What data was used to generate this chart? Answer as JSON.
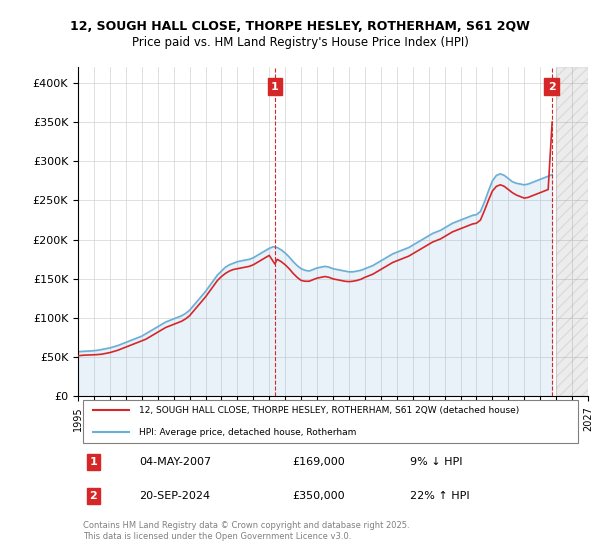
{
  "title1": "12, SOUGH HALL CLOSE, THORPE HESLEY, ROTHERHAM, S61 2QW",
  "title2": "Price paid vs. HM Land Registry's House Price Index (HPI)",
  "ylabel_ticks": [
    "£0",
    "£50K",
    "£100K",
    "£150K",
    "£200K",
    "£250K",
    "£300K",
    "£350K",
    "£400K"
  ],
  "ytick_vals": [
    0,
    50000,
    100000,
    150000,
    200000,
    250000,
    300000,
    350000,
    400000
  ],
  "ylim": [
    0,
    420000
  ],
  "xlim_start": 1995.0,
  "xlim_end": 2027.0,
  "xticks": [
    1995,
    1996,
    1997,
    1998,
    1999,
    2000,
    2001,
    2002,
    2003,
    2004,
    2005,
    2006,
    2007,
    2008,
    2009,
    2010,
    2011,
    2012,
    2013,
    2014,
    2015,
    2016,
    2017,
    2018,
    2019,
    2020,
    2021,
    2022,
    2023,
    2024,
    2025,
    2026,
    2027
  ],
  "hpi_color": "#6baed6",
  "price_color": "#d62728",
  "annotation_box_color": "#d62728",
  "marker1_year": 2007.35,
  "marker1_price": 169000,
  "marker2_year": 2024.72,
  "marker2_price": 350000,
  "legend_line1": "12, SOUGH HALL CLOSE, THORPE HESLEY, ROTHERHAM, S61 2QW (detached house)",
  "legend_line2": "HPI: Average price, detached house, Rotherham",
  "annotation1_label": "1",
  "annotation2_label": "2",
  "table_row1": [
    "1",
    "04-MAY-2007",
    "£169,000",
    "9% ↓ HPI"
  ],
  "table_row2": [
    "2",
    "20-SEP-2024",
    "£350,000",
    "22% ↑ HPI"
  ],
  "footer": "Contains HM Land Registry data © Crown copyright and database right 2025.\nThis data is licensed under the Open Government Licence v3.0.",
  "vline1_x": 2007.35,
  "vline2_x": 2024.72,
  "hpi_data_x": [
    1995.0,
    1995.25,
    1995.5,
    1995.75,
    1996.0,
    1996.25,
    1996.5,
    1996.75,
    1997.0,
    1997.25,
    1997.5,
    1997.75,
    1998.0,
    1998.25,
    1998.5,
    1998.75,
    1999.0,
    1999.25,
    1999.5,
    1999.75,
    2000.0,
    2000.25,
    2000.5,
    2000.75,
    2001.0,
    2001.25,
    2001.5,
    2001.75,
    2002.0,
    2002.25,
    2002.5,
    2002.75,
    2003.0,
    2003.25,
    2003.5,
    2003.75,
    2004.0,
    2004.25,
    2004.5,
    2004.75,
    2005.0,
    2005.25,
    2005.5,
    2005.75,
    2006.0,
    2006.25,
    2006.5,
    2006.75,
    2007.0,
    2007.25,
    2007.5,
    2007.75,
    2008.0,
    2008.25,
    2008.5,
    2008.75,
    2009.0,
    2009.25,
    2009.5,
    2009.75,
    2010.0,
    2010.25,
    2010.5,
    2010.75,
    2011.0,
    2011.25,
    2011.5,
    2011.75,
    2012.0,
    2012.25,
    2012.5,
    2012.75,
    2013.0,
    2013.25,
    2013.5,
    2013.75,
    2014.0,
    2014.25,
    2014.5,
    2014.75,
    2015.0,
    2015.25,
    2015.5,
    2015.75,
    2016.0,
    2016.25,
    2016.5,
    2016.75,
    2017.0,
    2017.25,
    2017.5,
    2017.75,
    2018.0,
    2018.25,
    2018.5,
    2018.75,
    2019.0,
    2019.25,
    2019.5,
    2019.75,
    2020.0,
    2020.25,
    2020.5,
    2020.75,
    2021.0,
    2021.25,
    2021.5,
    2021.75,
    2022.0,
    2022.25,
    2022.5,
    2022.75,
    2023.0,
    2023.25,
    2023.5,
    2023.75,
    2024.0,
    2024.25,
    2024.5,
    2024.75
  ],
  "hpi_data_y": [
    57000,
    57500,
    57800,
    58000,
    58500,
    59000,
    60000,
    61000,
    62000,
    63500,
    65000,
    67000,
    69000,
    71000,
    73000,
    75000,
    77000,
    80000,
    83000,
    86000,
    89000,
    92000,
    95000,
    97000,
    99000,
    101000,
    103000,
    106000,
    110000,
    116000,
    122000,
    128000,
    134000,
    141000,
    148000,
    155000,
    160000,
    165000,
    168000,
    170000,
    172000,
    173000,
    174000,
    175000,
    177000,
    180000,
    183000,
    186000,
    189000,
    191000,
    190000,
    187000,
    183000,
    178000,
    172000,
    167000,
    163000,
    161000,
    160000,
    162000,
    164000,
    165000,
    166000,
    165000,
    163000,
    162000,
    161000,
    160000,
    159000,
    159000,
    160000,
    161000,
    163000,
    165000,
    167000,
    170000,
    173000,
    176000,
    179000,
    182000,
    184000,
    186000,
    188000,
    190000,
    193000,
    196000,
    199000,
    202000,
    205000,
    208000,
    210000,
    212000,
    215000,
    218000,
    221000,
    223000,
    225000,
    227000,
    229000,
    231000,
    232000,
    236000,
    248000,
    262000,
    275000,
    282000,
    284000,
    282000,
    278000,
    274000,
    272000,
    271000,
    270000,
    271000,
    273000,
    275000,
    277000,
    279000,
    281000,
    283000
  ],
  "price_data_x": [
    1995.0,
    1995.25,
    1995.5,
    1995.75,
    1996.0,
    1996.25,
    1996.5,
    1996.75,
    1997.0,
    1997.25,
    1997.5,
    1997.75,
    1998.0,
    1998.25,
    1998.5,
    1998.75,
    1999.0,
    1999.25,
    1999.5,
    1999.75,
    2000.0,
    2000.25,
    2000.5,
    2000.75,
    2001.0,
    2001.25,
    2001.5,
    2001.75,
    2002.0,
    2002.25,
    2002.5,
    2002.75,
    2003.0,
    2003.25,
    2003.5,
    2003.75,
    2004.0,
    2004.25,
    2004.5,
    2004.75,
    2005.0,
    2005.25,
    2005.5,
    2005.75,
    2006.0,
    2006.25,
    2006.5,
    2006.75,
    2007.0,
    2007.35,
    2007.5,
    2007.75,
    2008.0,
    2008.25,
    2008.5,
    2008.75,
    2009.0,
    2009.25,
    2009.5,
    2009.75,
    2010.0,
    2010.25,
    2010.5,
    2010.75,
    2011.0,
    2011.25,
    2011.5,
    2011.75,
    2012.0,
    2012.25,
    2012.5,
    2012.75,
    2013.0,
    2013.25,
    2013.5,
    2013.75,
    2014.0,
    2014.25,
    2014.5,
    2014.75,
    2015.0,
    2015.25,
    2015.5,
    2015.75,
    2016.0,
    2016.25,
    2016.5,
    2016.75,
    2017.0,
    2017.25,
    2017.5,
    2017.75,
    2018.0,
    2018.25,
    2018.5,
    2018.75,
    2019.0,
    2019.25,
    2019.5,
    2019.75,
    2020.0,
    2020.25,
    2020.5,
    2020.75,
    2021.0,
    2021.25,
    2021.5,
    2021.75,
    2022.0,
    2022.25,
    2022.5,
    2022.75,
    2023.0,
    2023.25,
    2023.5,
    2023.75,
    2024.0,
    2024.25,
    2024.5,
    2024.75
  ],
  "price_data_y": [
    52000,
    52500,
    52800,
    53000,
    53200,
    53500,
    54000,
    55000,
    56000,
    57500,
    59000,
    61000,
    63000,
    65000,
    67000,
    69000,
    71000,
    73000,
    76000,
    79000,
    82000,
    85000,
    88000,
    90000,
    92000,
    94000,
    96000,
    99000,
    103000,
    109000,
    115000,
    121000,
    127000,
    134000,
    141000,
    148000,
    153000,
    157000,
    160000,
    162000,
    163000,
    164000,
    165000,
    166000,
    168000,
    171000,
    174000,
    177000,
    180000,
    169000,
    175000,
    172000,
    168000,
    163000,
    157000,
    152000,
    148000,
    147000,
    147000,
    149000,
    151000,
    152000,
    153000,
    152000,
    150000,
    149000,
    148000,
    147000,
    146500,
    147000,
    148000,
    149500,
    152000,
    154000,
    156000,
    159000,
    162000,
    165000,
    168000,
    171000,
    173000,
    175000,
    177000,
    179000,
    182000,
    185000,
    188000,
    191000,
    194000,
    197000,
    199000,
    201000,
    204000,
    207000,
    210000,
    212000,
    214000,
    216000,
    218000,
    220000,
    221000,
    225000,
    237000,
    250000,
    262000,
    268000,
    270000,
    268000,
    264000,
    260000,
    257000,
    255000,
    253000,
    254000,
    256000,
    258000,
    260000,
    262000,
    264000,
    350000
  ]
}
